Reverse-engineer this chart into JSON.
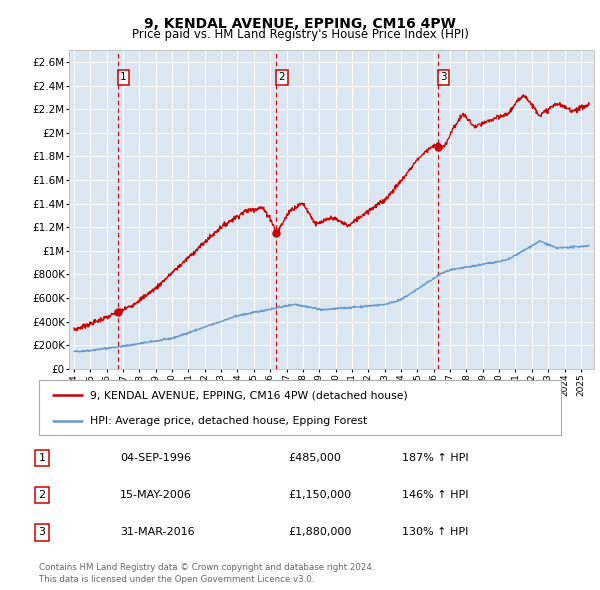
{
  "title": "9, KENDAL AVENUE, EPPING, CM16 4PW",
  "subtitle": "Price paid vs. HM Land Registry's House Price Index (HPI)",
  "background_color": "#dce6f1",
  "red_line_label": "9, KENDAL AVENUE, EPPING, CM16 4PW (detached house)",
  "blue_line_label": "HPI: Average price, detached house, Epping Forest",
  "purchases": [
    {
      "num": 1,
      "date": "04-SEP-1996",
      "year": 1996.67,
      "price": 485000,
      "hpi_pct": "187% ↑ HPI"
    },
    {
      "num": 2,
      "date": "15-MAY-2006",
      "year": 2006.37,
      "price": 1150000,
      "hpi_pct": "146% ↑ HPI"
    },
    {
      "num": 3,
      "date": "31-MAR-2016",
      "year": 2016.25,
      "price": 1880000,
      "hpi_pct": "130% ↑ HPI"
    }
  ],
  "ylim": [
    0,
    2700000
  ],
  "xlim_start": 1993.7,
  "xlim_end": 2025.8,
  "yticks": [
    0,
    200000,
    400000,
    600000,
    800000,
    1000000,
    1200000,
    1400000,
    1600000,
    1800000,
    2000000,
    2200000,
    2400000,
    2600000
  ],
  "ytick_labels": [
    "£0",
    "£200K",
    "£400K",
    "£600K",
    "£800K",
    "£1M",
    "£1.2M",
    "£1.4M",
    "£1.6M",
    "£1.8M",
    "£2M",
    "£2.2M",
    "£2.4M",
    "£2.6M"
  ],
  "footer": "Contains HM Land Registry data © Crown copyright and database right 2024.\nThis data is licensed under the Open Government Licence v3.0.",
  "red_color": "#cc0000",
  "blue_color": "#6699cc",
  "dashed_color": "#cc0000",
  "gray_dashed_color": "#aaaaaa"
}
